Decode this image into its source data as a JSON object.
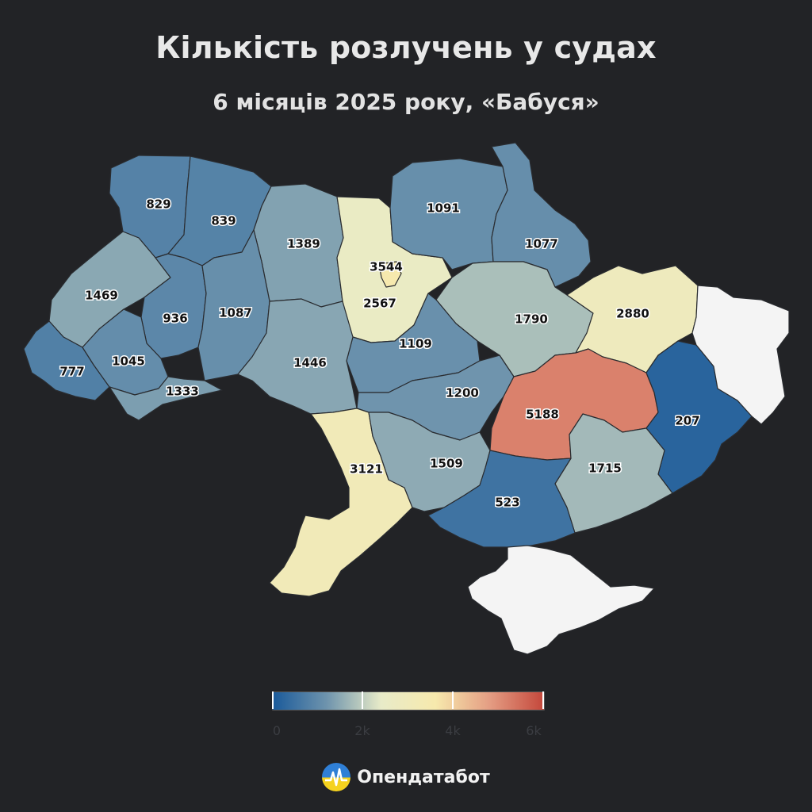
{
  "title": "Кількість розлучень у судах",
  "subtitle": "6 місяців 2025 року, «Бабуся»",
  "legend": {
    "min": 0,
    "max": 6000,
    "tick_labels": [
      "0",
      "2k",
      "4k",
      "6k"
    ],
    "colors": [
      "#1a5a9a",
      "#6f94ad",
      "#e8ebc8",
      "#f7e9ad",
      "#e49d83",
      "#c4473b"
    ]
  },
  "regions": [
    {
      "id": "volyn",
      "value": 829,
      "label": "829"
    },
    {
      "id": "rivne",
      "value": 839,
      "label": "839"
    },
    {
      "id": "zhytomyr",
      "value": 1389,
      "label": "1389"
    },
    {
      "id": "kyiv-city",
      "value": 3544,
      "label": "3544"
    },
    {
      "id": "kyiv-oblast",
      "value": 2567,
      "label": "2567"
    },
    {
      "id": "chernihiv",
      "value": 1091,
      "label": "1091"
    },
    {
      "id": "sumy",
      "value": 1077,
      "label": "1077"
    },
    {
      "id": "lviv",
      "value": 1469,
      "label": "1469"
    },
    {
      "id": "ternopil",
      "value": 936,
      "label": "936"
    },
    {
      "id": "khmelnytskyi",
      "value": 1087,
      "label": "1087"
    },
    {
      "id": "poltava",
      "value": 1790,
      "label": "1790"
    },
    {
      "id": "kharkiv",
      "value": 2880,
      "label": "2880"
    },
    {
      "id": "cherkasy",
      "value": 1109,
      "label": "1109"
    },
    {
      "id": "zakarpattia",
      "value": 777,
      "label": "777"
    },
    {
      "id": "ivano-frankivsk",
      "value": 1045,
      "label": "1045"
    },
    {
      "id": "vinnytsia",
      "value": 1446,
      "label": "1446"
    },
    {
      "id": "chernivtsi",
      "value": 1333,
      "label": "1333"
    },
    {
      "id": "kirovohrad",
      "value": 1200,
      "label": "1200"
    },
    {
      "id": "dnipropetrovsk",
      "value": 5188,
      "label": "5188"
    },
    {
      "id": "donetsk",
      "value": 207,
      "label": "207"
    },
    {
      "id": "odesa",
      "value": 3121,
      "label": "3121"
    },
    {
      "id": "mykolaiv",
      "value": 1509,
      "label": "1509"
    },
    {
      "id": "zaporizhzhia",
      "value": 1715,
      "label": "1715"
    },
    {
      "id": "kherson",
      "value": 523,
      "label": "523"
    },
    {
      "id": "luhansk",
      "value": null,
      "label": ""
    },
    {
      "id": "crimea",
      "value": null,
      "label": ""
    }
  ],
  "no_data_color": "#f4f4f4",
  "brand": {
    "name": "Опендатабот",
    "logo_icon": "opendatabot-logo-icon"
  }
}
